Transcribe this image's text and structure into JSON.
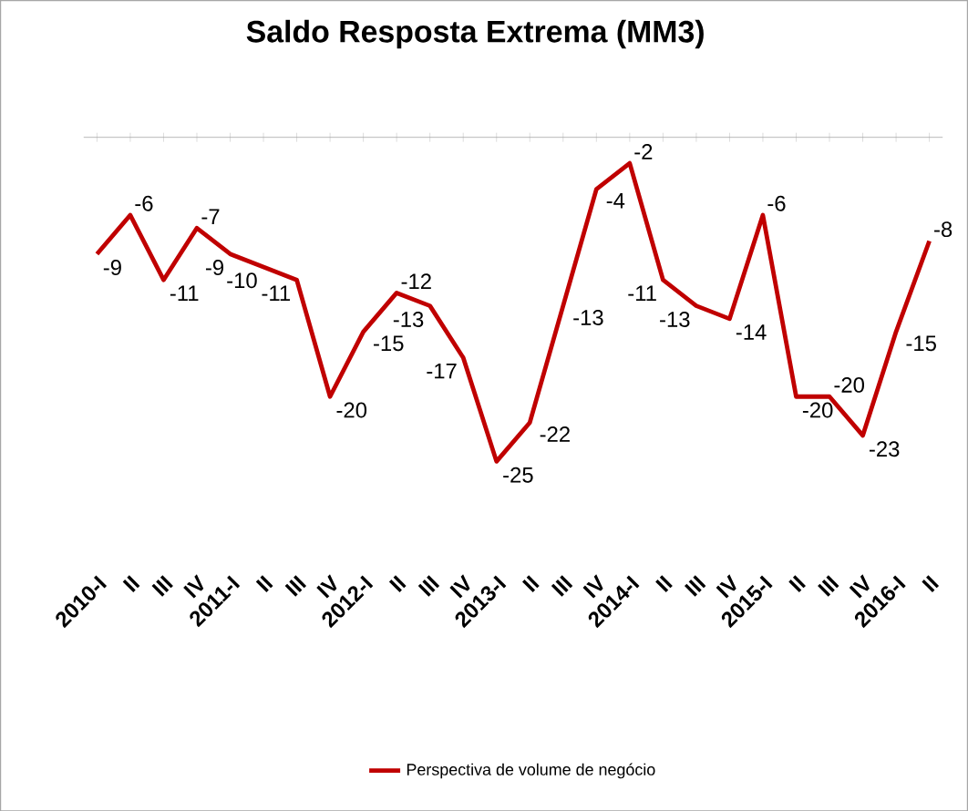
{
  "chart_data": {
    "type": "line",
    "title": "Saldo Resposta Extrema (MM3)",
    "categories": [
      "2010-I",
      "II",
      "III",
      "IV",
      "2011-I",
      "II",
      "III",
      "IV",
      "2012-I",
      "II",
      "III",
      "IV",
      "2013-I",
      "II",
      "III",
      "IV",
      "2014-I",
      "II",
      "III",
      "IV",
      "2015-I",
      "II",
      "III",
      "IV",
      "2016-I",
      "II"
    ],
    "series": [
      {
        "name": "Perspectiva de volume de negócio",
        "color": "#c00000",
        "values": [
          -9,
          -6,
          -11,
          -7,
          -9,
          -10,
          -11,
          -20,
          -15,
          -12,
          -13,
          -17,
          -25,
          -22,
          -13,
          -4,
          -2,
          -11,
          -13,
          -14,
          -6,
          -20,
          -20,
          -23,
          -15,
          -8
        ]
      }
    ],
    "tick_labels": "x",
    "data_labels": true,
    "legend": "bottom",
    "grid": false,
    "marker": "none",
    "line_style": "solid"
  }
}
